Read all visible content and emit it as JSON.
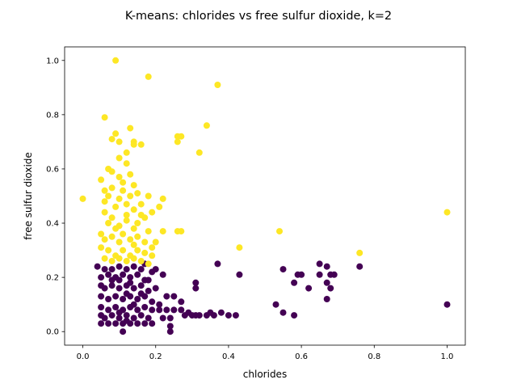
{
  "chart_data": {
    "type": "scatter",
    "title": "K-means: chlorides vs free sulfur dioxide, k=2",
    "xlabel": "chlorides",
    "ylabel": "free sulfur dioxide",
    "xlim": [
      -0.05,
      1.05
    ],
    "ylim": [
      -0.05,
      1.05
    ],
    "xticks": [
      0.0,
      0.2,
      0.4,
      0.6,
      0.8,
      1.0
    ],
    "yticks": [
      0.0,
      0.2,
      0.4,
      0.6,
      0.8,
      1.0
    ],
    "xtick_labels": [
      "0.0",
      "0.2",
      "0.4",
      "0.6",
      "0.8",
      "1.0"
    ],
    "ytick_labels": [
      "0.0",
      "0.2",
      "0.4",
      "0.6",
      "0.8",
      "1.0"
    ],
    "grid": false,
    "legend": "none",
    "colors": {
      "cluster_0": "#440154",
      "cluster_1": "#fde725"
    },
    "series": [
      {
        "color": "#440154",
        "points": [
          [
            0.04,
            0.24
          ],
          [
            0.06,
            0.23
          ],
          [
            0.08,
            0.23
          ],
          [
            0.1,
            0.24
          ],
          [
            0.12,
            0.23
          ],
          [
            0.14,
            0.24
          ],
          [
            0.16,
            0.23
          ],
          [
            0.17,
            0.25
          ],
          [
            0.05,
            0.2
          ],
          [
            0.07,
            0.21
          ],
          [
            0.09,
            0.2
          ],
          [
            0.11,
            0.21
          ],
          [
            0.13,
            0.2
          ],
          [
            0.15,
            0.21
          ],
          [
            0.17,
            0.19
          ],
          [
            0.19,
            0.22
          ],
          [
            0.05,
            0.17
          ],
          [
            0.06,
            0.16
          ],
          [
            0.08,
            0.17
          ],
          [
            0.1,
            0.16
          ],
          [
            0.12,
            0.17
          ],
          [
            0.14,
            0.16
          ],
          [
            0.16,
            0.17
          ],
          [
            0.18,
            0.15
          ],
          [
            0.05,
            0.13
          ],
          [
            0.07,
            0.12
          ],
          [
            0.09,
            0.13
          ],
          [
            0.11,
            0.12
          ],
          [
            0.13,
            0.13
          ],
          [
            0.15,
            0.12
          ],
          [
            0.17,
            0.13
          ],
          [
            0.19,
            0.11
          ],
          [
            0.05,
            0.09
          ],
          [
            0.07,
            0.08
          ],
          [
            0.09,
            0.09
          ],
          [
            0.11,
            0.08
          ],
          [
            0.13,
            0.09
          ],
          [
            0.15,
            0.08
          ],
          [
            0.17,
            0.09
          ],
          [
            0.19,
            0.08
          ],
          [
            0.05,
            0.06
          ],
          [
            0.06,
            0.05
          ],
          [
            0.08,
            0.06
          ],
          [
            0.1,
            0.05
          ],
          [
            0.12,
            0.06
          ],
          [
            0.14,
            0.05
          ],
          [
            0.16,
            0.06
          ],
          [
            0.18,
            0.05
          ],
          [
            0.05,
            0.03
          ],
          [
            0.07,
            0.03
          ],
          [
            0.09,
            0.03
          ],
          [
            0.11,
            0.03
          ],
          [
            0.13,
            0.03
          ],
          [
            0.15,
            0.03
          ],
          [
            0.17,
            0.03
          ],
          [
            0.19,
            0.03
          ],
          [
            0.1,
            0.19
          ],
          [
            0.12,
            0.14
          ],
          [
            0.14,
            0.1
          ],
          [
            0.1,
            0.07
          ],
          [
            0.12,
            0.04
          ],
          [
            0.16,
            0.14
          ],
          [
            0.08,
            0.19
          ],
          [
            0.13,
            0.18
          ],
          [
            0.11,
            0.0
          ],
          [
            0.21,
            0.08
          ],
          [
            0.22,
            0.05
          ],
          [
            0.23,
            0.08
          ],
          [
            0.24,
            0.0
          ],
          [
            0.24,
            0.02
          ],
          [
            0.24,
            0.05
          ],
          [
            0.25,
            0.08
          ],
          [
            0.27,
            0.08
          ],
          [
            0.28,
            0.06
          ],
          [
            0.29,
            0.07
          ],
          [
            0.3,
            0.06
          ],
          [
            0.31,
            0.16
          ],
          [
            0.31,
            0.18
          ],
          [
            0.22,
            0.21
          ],
          [
            0.23,
            0.13
          ],
          [
            0.25,
            0.13
          ],
          [
            0.27,
            0.11
          ],
          [
            0.31,
            0.06
          ],
          [
            0.32,
            0.06
          ],
          [
            0.34,
            0.06
          ],
          [
            0.35,
            0.07
          ],
          [
            0.36,
            0.06
          ],
          [
            0.37,
            0.25
          ],
          [
            0.38,
            0.07
          ],
          [
            0.4,
            0.06
          ],
          [
            0.42,
            0.06
          ],
          [
            0.43,
            0.21
          ],
          [
            0.2,
            0.16
          ],
          [
            0.18,
            0.19
          ],
          [
            0.2,
            0.23
          ],
          [
            0.21,
            0.1
          ],
          [
            0.53,
            0.1
          ],
          [
            0.55,
            0.07
          ],
          [
            0.55,
            0.23
          ],
          [
            0.58,
            0.06
          ],
          [
            0.58,
            0.18
          ],
          [
            0.59,
            0.21
          ],
          [
            0.6,
            0.21
          ],
          [
            0.62,
            0.16
          ],
          [
            0.65,
            0.21
          ],
          [
            0.65,
            0.25
          ],
          [
            0.67,
            0.12
          ],
          [
            0.67,
            0.18
          ],
          [
            0.67,
            0.24
          ],
          [
            0.68,
            0.16
          ],
          [
            0.68,
            0.21
          ],
          [
            0.69,
            0.21
          ],
          [
            0.76,
            0.24
          ],
          [
            1.0,
            0.1
          ]
        ]
      },
      {
        "color": "#fde725",
        "points": [
          [
            0.0,
            0.49
          ],
          [
            0.06,
            0.79
          ],
          [
            0.09,
            1.0
          ],
          [
            0.18,
            0.94
          ],
          [
            0.37,
            0.91
          ],
          [
            0.08,
            0.71
          ],
          [
            0.09,
            0.73
          ],
          [
            0.1,
            0.7
          ],
          [
            0.13,
            0.75
          ],
          [
            0.14,
            0.7
          ],
          [
            0.14,
            0.69
          ],
          [
            0.16,
            0.69
          ],
          [
            0.12,
            0.66
          ],
          [
            0.1,
            0.64
          ],
          [
            0.26,
            0.72
          ],
          [
            0.26,
            0.7
          ],
          [
            0.27,
            0.72
          ],
          [
            0.34,
            0.76
          ],
          [
            0.32,
            0.66
          ],
          [
            0.07,
            0.6
          ],
          [
            0.08,
            0.59
          ],
          [
            0.1,
            0.57
          ],
          [
            0.12,
            0.62
          ],
          [
            0.05,
            0.56
          ],
          [
            0.06,
            0.52
          ],
          [
            0.07,
            0.5
          ],
          [
            0.06,
            0.48
          ],
          [
            0.08,
            0.53
          ],
          [
            0.11,
            0.55
          ],
          [
            0.13,
            0.58
          ],
          [
            0.14,
            0.54
          ],
          [
            0.15,
            0.51
          ],
          [
            0.09,
            0.46
          ],
          [
            0.1,
            0.49
          ],
          [
            0.12,
            0.47
          ],
          [
            0.14,
            0.45
          ],
          [
            0.16,
            0.47
          ],
          [
            0.18,
            0.5
          ],
          [
            0.16,
            0.43
          ],
          [
            0.06,
            0.44
          ],
          [
            0.07,
            0.4
          ],
          [
            0.08,
            0.42
          ],
          [
            0.1,
            0.39
          ],
          [
            0.12,
            0.41
          ],
          [
            0.14,
            0.38
          ],
          [
            0.15,
            0.4
          ],
          [
            0.17,
            0.42
          ],
          [
            0.19,
            0.44
          ],
          [
            0.05,
            0.36
          ],
          [
            0.06,
            0.34
          ],
          [
            0.08,
            0.35
          ],
          [
            0.1,
            0.33
          ],
          [
            0.11,
            0.36
          ],
          [
            0.13,
            0.34
          ],
          [
            0.15,
            0.35
          ],
          [
            0.17,
            0.33
          ],
          [
            0.05,
            0.31
          ],
          [
            0.07,
            0.3
          ],
          [
            0.09,
            0.28
          ],
          [
            0.11,
            0.3
          ],
          [
            0.13,
            0.28
          ],
          [
            0.15,
            0.3
          ],
          [
            0.17,
            0.29
          ],
          [
            0.06,
            0.27
          ],
          [
            0.08,
            0.26
          ],
          [
            0.1,
            0.27
          ],
          [
            0.12,
            0.26
          ],
          [
            0.14,
            0.27
          ],
          [
            0.16,
            0.26
          ],
          [
            0.11,
            0.52
          ],
          [
            0.12,
            0.43
          ],
          [
            0.09,
            0.38
          ],
          [
            0.14,
            0.32
          ],
          [
            0.18,
            0.37
          ],
          [
            0.2,
            0.33
          ],
          [
            0.21,
            0.46
          ],
          [
            0.22,
            0.49
          ],
          [
            0.22,
            0.37
          ],
          [
            0.19,
            0.31
          ],
          [
            0.19,
            0.28
          ],
          [
            0.26,
            0.37
          ],
          [
            0.27,
            0.37
          ],
          [
            0.43,
            0.31
          ],
          [
            0.54,
            0.37
          ],
          [
            0.76,
            0.29
          ],
          [
            1.0,
            0.44
          ],
          [
            0.18,
            0.25
          ],
          [
            0.13,
            0.5
          ]
        ]
      }
    ]
  }
}
